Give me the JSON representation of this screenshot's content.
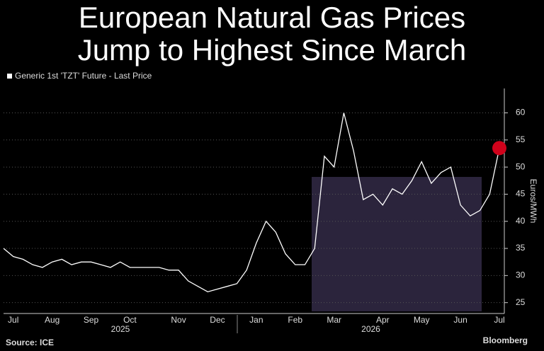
{
  "chart_data": {
    "type": "line",
    "title": "European Natural Gas Prices Jump to Highest Since March",
    "legend_label": "Generic 1st 'TZT' Future - Last Price",
    "y_label": "Euros/MWh",
    "source": "Source: ICE",
    "brand": "Bloomberg",
    "categories": [
      null,
      "Jul",
      null,
      null,
      null,
      "Aug",
      null,
      null,
      null,
      "Sep",
      null,
      null,
      null,
      "Oct",
      null,
      null,
      null,
      null,
      "Nov",
      null,
      null,
      null,
      "Dec",
      null,
      null,
      null,
      "Jan",
      null,
      null,
      null,
      "Feb",
      null,
      null,
      null,
      "Mar",
      null,
      null,
      null,
      null,
      "Apr",
      null,
      null,
      null,
      "May",
      null,
      null,
      null,
      "Jun",
      null,
      null,
      null,
      "Jul"
    ],
    "years": [
      "2025",
      "2026"
    ],
    "series": [
      {
        "name": "Generic 1st 'TZT' Future - Last Price",
        "color": "#ffffff",
        "values": [
          35,
          33.5,
          33,
          32,
          31.5,
          32.5,
          33,
          32,
          32.5,
          32.5,
          32,
          31.5,
          32.5,
          31.5,
          31.5,
          31.5,
          31.5,
          31,
          31,
          29,
          28,
          27,
          27.5,
          28,
          28.5,
          31,
          36,
          40,
          38,
          34,
          32,
          32,
          35,
          52,
          50,
          60,
          53,
          44,
          45,
          43,
          46,
          45,
          47.5,
          51,
          47,
          49,
          50,
          43,
          41,
          42,
          45,
          53.5
        ]
      }
    ],
    "last_marker_color": "#d0021b",
    "ylim": [
      23,
      64.5
    ],
    "yticks": [
      25,
      30,
      35,
      40,
      45,
      50,
      55,
      60
    ],
    "grid": true
  }
}
